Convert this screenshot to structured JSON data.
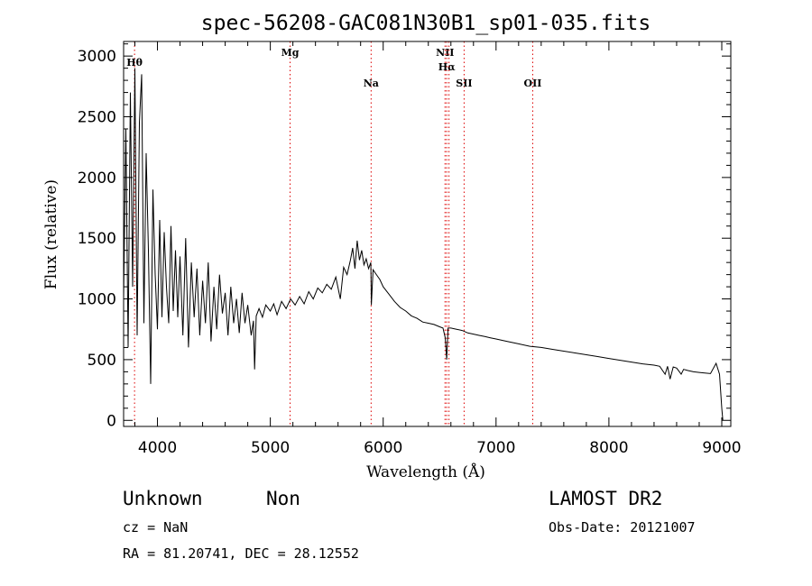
{
  "chart_data": {
    "type": "line",
    "title": "spec-56208-GAC081N30B1_sp01-035.fits",
    "xlabel": "Wavelength (Å)",
    "ylabel": "Flux (relative)",
    "xlim": [
      3700,
      9080
    ],
    "ylim": [
      -50,
      3120
    ],
    "xticks": [
      4000,
      5000,
      6000,
      7000,
      8000,
      9000
    ],
    "yticks": [
      0,
      500,
      1000,
      1500,
      2000,
      2500,
      3000
    ],
    "grid": false,
    "series": [
      {
        "x": [
          3700,
          3720,
          3740,
          3760,
          3780,
          3800,
          3820,
          3840,
          3860,
          3880,
          3900,
          3920,
          3940,
          3960,
          3980,
          4000,
          4020,
          4040,
          4060,
          4080,
          4100,
          4120,
          4140,
          4160,
          4180,
          4200,
          4225,
          4250,
          4275,
          4300,
          4325,
          4350,
          4375,
          4400,
          4425,
          4450,
          4475,
          4500,
          4525,
          4550,
          4575,
          4600,
          4625,
          4650,
          4675,
          4700,
          4725,
          4750,
          4775,
          4800,
          4830,
          4850,
          4861,
          4875,
          4900,
          4930,
          4960,
          5000,
          5030,
          5060,
          5100,
          5140,
          5180,
          5220,
          5260,
          5300,
          5340,
          5380,
          5420,
          5460,
          5500,
          5540,
          5580,
          5620,
          5650,
          5680,
          5710,
          5730,
          5750,
          5770,
          5790,
          5810,
          5830,
          5850,
          5870,
          5890,
          5895,
          5910,
          5940,
          5970,
          6000,
          6050,
          6100,
          6150,
          6200,
          6250,
          6300,
          6350,
          6400,
          6450,
          6500,
          6530,
          6550,
          6563,
          6575,
          6600,
          6650,
          6700,
          6750,
          6800,
          6850,
          6900,
          6950,
          7000,
          7100,
          7200,
          7300,
          7400,
          7500,
          7600,
          7700,
          7800,
          7900,
          8000,
          8100,
          8200,
          8300,
          8400,
          8450,
          8498,
          8520,
          8542,
          8570,
          8600,
          8640,
          8662,
          8700,
          8750,
          8800,
          8850,
          8900,
          8950,
          8980,
          9000,
          9010
        ],
        "y": [
          1000,
          2400,
          600,
          2700,
          1100,
          2900,
          700,
          2450,
          2850,
          800,
          2200,
          1400,
          300,
          1900,
          1200,
          750,
          1650,
          850,
          1550,
          1100,
          800,
          1600,
          900,
          1400,
          850,
          1350,
          700,
          1500,
          600,
          1300,
          850,
          1250,
          700,
          1150,
          800,
          1300,
          650,
          1100,
          750,
          1200,
          880,
          1050,
          700,
          1100,
          800,
          1000,
          720,
          1050,
          800,
          950,
          700,
          820,
          420,
          860,
          920,
          850,
          950,
          900,
          960,
          870,
          980,
          920,
          1000,
          950,
          1020,
          960,
          1060,
          1000,
          1090,
          1050,
          1120,
          1080,
          1180,
          1000,
          1260,
          1200,
          1320,
          1420,
          1250,
          1480,
          1320,
          1400,
          1280,
          1330,
          1250,
          1300,
          950,
          1240,
          1200,
          1160,
          1100,
          1040,
          980,
          930,
          900,
          860,
          840,
          810,
          800,
          790,
          770,
          760,
          680,
          500,
          760,
          760,
          750,
          740,
          720,
          710,
          700,
          690,
          680,
          670,
          650,
          630,
          610,
          600,
          585,
          570,
          555,
          540,
          525,
          510,
          495,
          480,
          465,
          455,
          445,
          380,
          445,
          340,
          440,
          430,
          380,
          420,
          410,
          400,
          395,
          390,
          385,
          470,
          380,
          100,
          0
        ]
      }
    ],
    "lines": [
      {
        "label": "Hθ",
        "wavelength": 3797
      },
      {
        "label": "Mg",
        "wavelength": 5175
      },
      {
        "label": "Na",
        "wavelength": 5893
      },
      {
        "label": "NII",
        "wavelength": 6548
      },
      {
        "label": "Hα",
        "wavelength": 6563
      },
      {
        "label": "NII",
        "wavelength": 6583
      },
      {
        "label": "SII",
        "wavelength": 6717
      },
      {
        "label": "OII",
        "wavelength": 7325
      }
    ],
    "line_color": "#dd0000"
  },
  "info": {
    "class": "Unknown",
    "subclass": "Non",
    "survey": "LAMOST DR2",
    "cz": "cz = NaN",
    "obs_date": "Obs-Date: 20121007",
    "coords": "RA =  81.20741, DEC =  28.12552"
  }
}
